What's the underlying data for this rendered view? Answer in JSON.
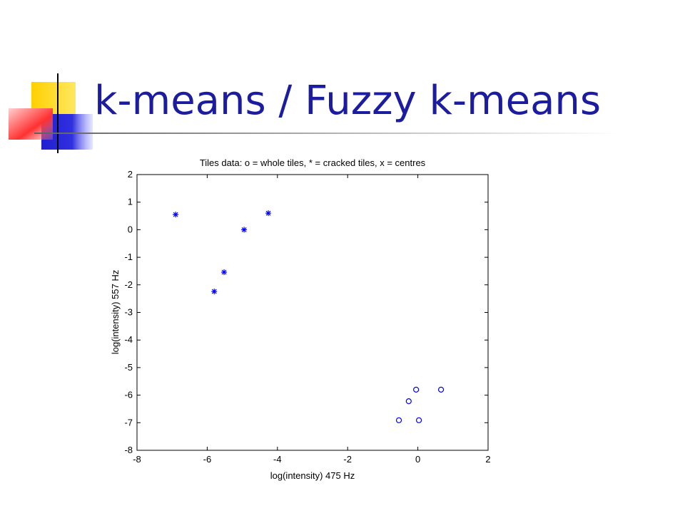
{
  "slide_title": "k-means / Fuzzy k-means",
  "chart_data": {
    "type": "scatter",
    "title": "Tiles data: o = whole tiles, * = cracked tiles, x = centres",
    "x_label": "log(intensity) 475 Hz",
    "y_label": "log(intensity) 557 Hz",
    "xlim": [
      -8,
      2
    ],
    "xticks": [
      -8,
      -6,
      -4,
      -2,
      0,
      2
    ],
    "ylim": [
      -8,
      2
    ],
    "yticks": [
      -8,
      -7,
      -6,
      -5,
      -4,
      -3,
      -2,
      -1,
      0,
      1,
      2
    ],
    "series": [
      {
        "marker": "*",
        "color": "#0000ff",
        "x": [
          -6.9,
          -4.26,
          -4.95,
          -5.52,
          -5.8
        ],
        "y": [
          0.55,
          0.6,
          0.0,
          -1.54,
          -2.24
        ]
      },
      {
        "marker": "o",
        "color": "#0000ff",
        "x": [
          -0.05,
          0.66,
          -0.26,
          -0.54,
          0.03
        ],
        "y": [
          -5.8,
          -5.8,
          -6.22,
          -6.91,
          -6.91
        ]
      }
    ]
  }
}
